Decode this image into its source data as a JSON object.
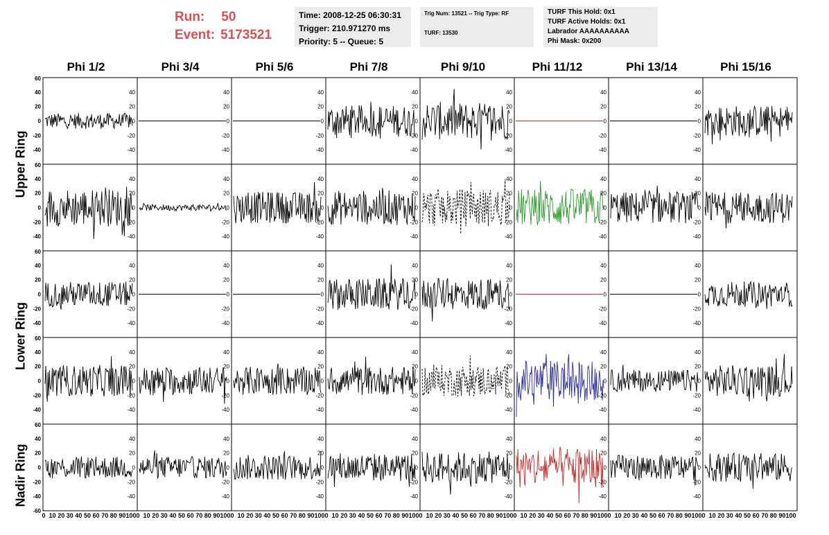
{
  "run_info": {
    "run_label": "Run:",
    "run_value": "50",
    "event_label": "Event:",
    "event_value": "5173521"
  },
  "info_box_1": {
    "line1": "Time: 2008-12-25 06:30:31",
    "line2": "Trigger: 210.971270 ms",
    "line3": "Priority: 5 -- Queue: 5"
  },
  "info_box_2": {
    "line1": "Trig Num: 13521 -- Trig Type: RF",
    "line2": "TURF: 13530"
  },
  "info_box_3": {
    "line1": "TURF This Hold: 0x1",
    "line2": "TURF Active Holds: 0x1",
    "line3": "Labrador AAAAAAAAAA",
    "line4": "Phi Mask: 0x200"
  },
  "columns": [
    "Phi 1/2",
    "Phi 3/4",
    "Phi 5/6",
    "Phi 7/8",
    "Phi 9/10",
    "Phi 11/12",
    "Phi 13/14",
    "Phi 15/16"
  ],
  "rings": [
    "Upper Ring",
    "Lower Ring",
    "Nadir Ring"
  ],
  "colors": {
    "run_info": "#d4524f",
    "info_box_bg": "#ececec",
    "trace_default": "#000000",
    "trace_green": "#2e9a2e",
    "trace_blue": "#2a2a9a",
    "trace_red": "#c02a2a"
  },
  "chart_data": {
    "type": "line",
    "y_ticks": [
      "60",
      "40",
      "20",
      "0",
      "-20",
      "-40",
      "-60"
    ],
    "x_ticks": [
      "0",
      "10",
      "20",
      "30",
      "40",
      "50",
      "60",
      "70",
      "80",
      "90",
      "100"
    ],
    "ylim": [
      -60,
      60
    ],
    "xlim": [
      0,
      100
    ],
    "grid": false,
    "rows": 5,
    "cols": 8,
    "panels": [
      [
        "noise:0.5",
        "flat",
        "flat",
        "noise:1",
        "noise:1.2",
        "flat:red",
        "flat",
        "noise:1"
      ],
      [
        "noise:1.2",
        "noise:0.2",
        "noise:1",
        "noise:1.1",
        "dash:1.2",
        "noise:1.2:green",
        "noise:1",
        "noise:1"
      ],
      [
        "noise:0.8",
        "flat",
        "flat",
        "noise:1",
        "noise:1",
        "flat:red",
        "flat",
        "noise:0.8"
      ],
      [
        "noise:1",
        "noise:0.9",
        "noise:0.9",
        "noise:0.9",
        "dash:1",
        "noise:1.3:blue",
        "noise:0.7",
        "noise:1"
      ],
      [
        "noise:0.7",
        "noise:0.7",
        "noise:0.8",
        "noise:0.9",
        "noise:1",
        "noise:1.3:red",
        "noise:0.8",
        "noise:0.9"
      ]
    ]
  }
}
